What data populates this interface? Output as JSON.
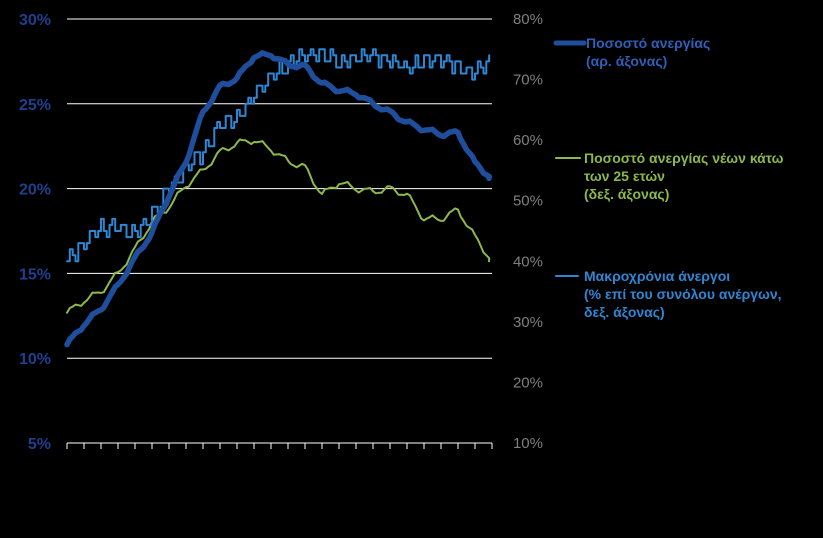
{
  "chart_data": {
    "type": "line",
    "title": "",
    "xlabel": "",
    "colors": {
      "unemployment": "#1f4e9c",
      "youth": "#8db84a",
      "long_term": "#2f86d4",
      "grid": "#ffffff",
      "left_ticks": "#1f3f8f",
      "right_ticks": "#7f7f7f"
    },
    "left_axis": {
      "ylim": [
        5,
        30
      ],
      "ticks": [
        5,
        10,
        15,
        20,
        25,
        30
      ],
      "tick_labels": [
        "5%",
        "10%",
        "15%",
        "20%",
        "25%",
        "30%"
      ]
    },
    "right_axis": {
      "ylim": [
        10,
        80
      ],
      "ticks": [
        10,
        20,
        30,
        40,
        50,
        60,
        70,
        80
      ],
      "tick_labels": [
        "10%",
        "20%",
        "30%",
        "40%",
        "50%",
        "60%",
        "70%",
        "80%"
      ]
    },
    "x_periods": 25,
    "grid": "horizontal",
    "series": [
      {
        "key": "unemployment",
        "name": "Ποσοστό ανεργίας (αρ. άξονας)",
        "axis": "left",
        "values": [
          10.8,
          12.0,
          12.9,
          14.3,
          15.9,
          17.4,
          19.6,
          21.6,
          24.5,
          26.0,
          26.5,
          27.8,
          27.9,
          27.3,
          27.2,
          26.2,
          25.8,
          25.6,
          25.0,
          24.5,
          23.9,
          23.5,
          23.2,
          23.3,
          21.5,
          20.6
        ]
      },
      {
        "key": "youth",
        "name": "Ποσοστό ανεργίας νέων κάτω των 25 ετών (δεξ. άξονας)",
        "axis": "right",
        "values": [
          31.5,
          33.5,
          35.0,
          38.0,
          42.0,
          46.5,
          49.0,
          52.5,
          55.0,
          58.0,
          59.5,
          60.0,
          58.5,
          56.5,
          55.5,
          51.0,
          53.0,
          52.0,
          51.5,
          52.0,
          51.0,
          47.0,
          47.0,
          48.5,
          44.0,
          40.0
        ]
      },
      {
        "key": "long_term",
        "name": "Μακροχρόνια άνεργοι (% επί του συνόλου ανέργων, δεξ. άξονας)",
        "axis": "right",
        "values": [
          40.0,
          43.0,
          45.5,
          45.5,
          44.5,
          48.0,
          52.0,
          55.5,
          58.0,
          62.5,
          63.5,
          67.5,
          70.5,
          72.5,
          74.0,
          74.5,
          72.5,
          73.5,
          74.0,
          73.0,
          72.0,
          73.0,
          73.5,
          72.0,
          71.0,
          73.0
        ]
      }
    ],
    "legend": {
      "position": "right",
      "entries": [
        {
          "key": "unemployment",
          "lines": [
            "Ποσοστό ανεργίας",
            "(αρ. άξονας)"
          ]
        },
        {
          "key": "youth",
          "lines": [
            "Ποσοστό ανεργίας νέων κάτω",
            "των 25 ετών",
            "(δεξ. άξονας)"
          ]
        },
        {
          "key": "long_term",
          "lines": [
            "Μακροχρόνια άνεργοι",
            "(% επί του συνόλου ανέργων,",
            "δεξ. άξονας)"
          ]
        }
      ]
    }
  }
}
